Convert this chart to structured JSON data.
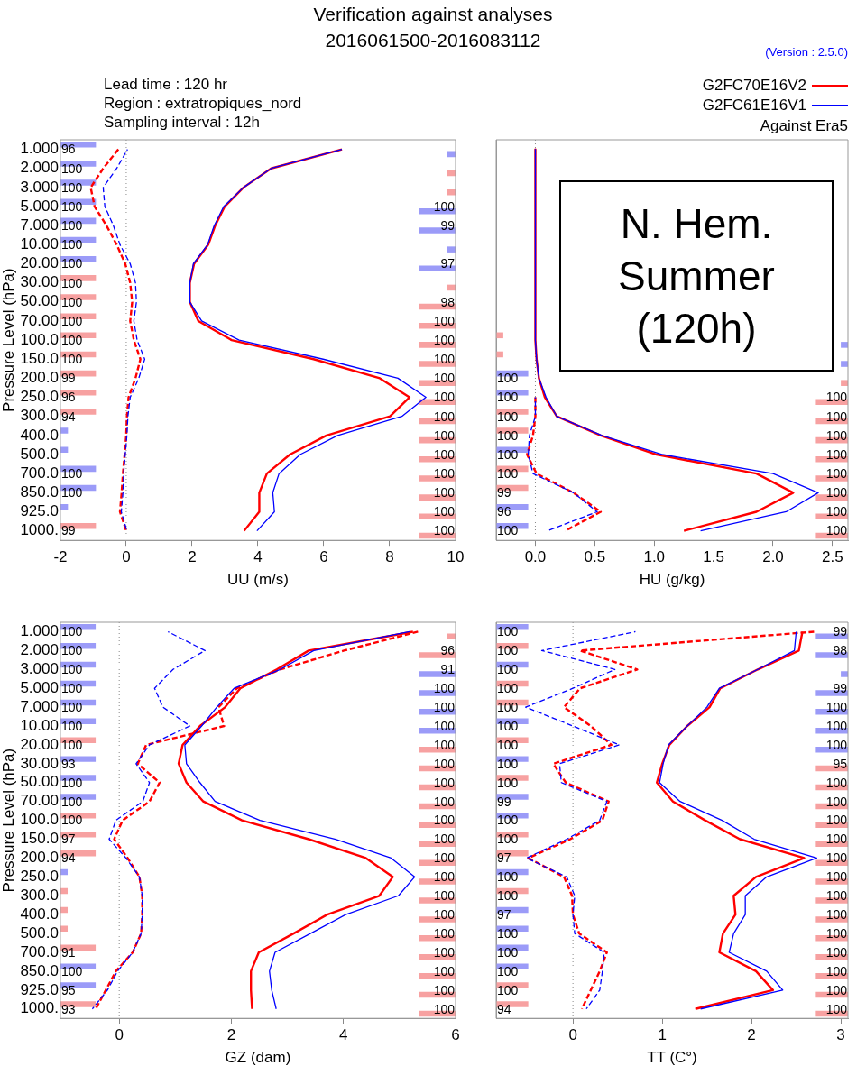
{
  "chart_data": [
    {
      "type": "line",
      "orientation": "horizontal",
      "title": "Verification against analyses",
      "subtitle": "2016061500-2016083112",
      "xlabel": "UU (m/s)",
      "ylabel": "Pressure Level (hPa)",
      "xlim": [
        -2,
        10
      ],
      "xticks": [
        -2,
        0,
        2,
        4,
        6,
        8,
        10
      ],
      "categories": [
        "1.000",
        "2.000",
        "3.000",
        "5.000",
        "7.000",
        "10.00",
        "20.00",
        "30.00",
        "50.00",
        "70.00",
        "100.0",
        "150.0",
        "200.0",
        "250.0",
        "300.0",
        "400.0",
        "500.0",
        "700.0",
        "850.0",
        "925.0",
        "1000."
      ],
      "ref_lines": [
        {
          "axis": "x",
          "value": 0,
          "color": "#888888",
          "line_style": "dotted"
        }
      ],
      "annotations": [
        "Lead time : 120 hr",
        "Region : extratropiques_nord",
        "Sampling interval : 12h",
        {
          "text": "96",
          "x": -2,
          "y": "1.000"
        },
        {
          "text": "100",
          "x": -2,
          "y": "2.000"
        },
        {
          "text": "100",
          "x": -2,
          "y": "3.000"
        },
        {
          "text": "100",
          "x": -2,
          "y": "5.000"
        },
        {
          "text": "100",
          "x": -2,
          "y": "7.000"
        },
        {
          "text": "100",
          "x": -2,
          "y": "10.00"
        },
        {
          "text": "100",
          "x": -2,
          "y": "20.00"
        },
        {
          "text": "100",
          "x": -2,
          "y": "30.00"
        },
        {
          "text": "100",
          "x": -2,
          "y": "50.00"
        },
        {
          "text": "100",
          "x": -2,
          "y": "70.00"
        },
        {
          "text": "100",
          "x": -2,
          "y": "100.0"
        },
        {
          "text": "100",
          "x": -2,
          "y": "150.0"
        },
        {
          "text": "99",
          "x": -2,
          "y": "200.0"
        },
        {
          "text": "96",
          "x": -2,
          "y": "250.0"
        },
        {
          "text": "94",
          "x": -2,
          "y": "300.0"
        },
        {
          "text": "100",
          "x": -2,
          "y": "700.0"
        },
        {
          "text": "100",
          "x": -2,
          "y": "850.0"
        },
        {
          "text": "99",
          "x": -2,
          "y": "1000."
        },
        {
          "text": "100",
          "x": 10,
          "y": "5.000"
        },
        {
          "text": "99",
          "x": 10,
          "y": "7.000"
        },
        {
          "text": "97",
          "x": 10,
          "y": "20.00"
        },
        {
          "text": "98",
          "x": 10,
          "y": "50.00"
        },
        {
          "text": "100",
          "x": 10,
          "y": "70.00"
        },
        {
          "text": "100",
          "x": 10,
          "y": "100.0"
        },
        {
          "text": "100",
          "x": 10,
          "y": "150.0"
        },
        {
          "text": "100",
          "x": 10,
          "y": "200.0"
        },
        {
          "text": "100",
          "x": 10,
          "y": "250.0"
        },
        {
          "text": "100",
          "x": 10,
          "y": "300.0"
        },
        {
          "text": "100",
          "x": 10,
          "y": "400.0"
        },
        {
          "text": "100",
          "x": 10,
          "y": "500.0"
        },
        {
          "text": "100",
          "x": 10,
          "y": "700.0"
        },
        {
          "text": "100",
          "x": 10,
          "y": "850.0"
        },
        {
          "text": "100",
          "x": 10,
          "y": "925.0"
        },
        {
          "text": "100",
          "x": 10,
          "y": "1000."
        }
      ],
      "series": [
        {
          "type": "bar",
          "values": [
            1.08,
            1.08,
            1.08,
            1.08,
            1.08,
            1.08,
            1.08,
            1.08,
            1.08,
            1.08,
            1.08,
            1.08,
            1.08,
            1.08,
            1.08,
            0.23,
            0.23,
            1.08,
            1.08,
            0.23,
            1.08
          ],
          "base": [
            -2,
            -2,
            -2,
            -2,
            -2,
            -2,
            -2,
            -2,
            -2,
            -2,
            -2,
            -2,
            -2,
            -2,
            -2,
            -2,
            -2,
            -2,
            -2,
            -2,
            -2
          ],
          "colors": [
            "#9b9bf8",
            "#9b9bf8",
            "#9b9bf8",
            "#9b9bf8",
            "#9b9bf8",
            "#9b9bf8",
            "#9b9bf8",
            "#f7a1a1",
            "#f7a1a1",
            "#f7a1a1",
            "#f7a1a1",
            "#f7a1a1",
            "#f7a1a1",
            "#f7a1a1",
            "#f7a1a1",
            "#9b9bf8",
            "#9b9bf8",
            "#9b9bf8",
            "#9b9bf8",
            "#9b9bf8",
            "#f7a1a1"
          ]
        },
        {
          "type": "bar",
          "values": [
            0.26,
            0.26,
            0.26,
            1.1,
            1.1,
            0.26,
            1.1,
            0.26,
            1.1,
            1.1,
            1.1,
            1.1,
            1.1,
            1.1,
            1.1,
            1.1,
            1.1,
            1.1,
            1.1,
            1.1,
            1.1
          ],
          "base": [
            9.74,
            9.74,
            9.74,
            8.9,
            8.9,
            9.74,
            8.9,
            9.74,
            8.9,
            8.9,
            8.9,
            8.9,
            8.9,
            8.9,
            8.9,
            8.9,
            8.9,
            8.9,
            8.9,
            8.9,
            8.9
          ],
          "colors": [
            "#9b9bf8",
            "#f7a1a1",
            "#f7a1a1",
            "#9b9bf8",
            "#9b9bf8",
            "#9b9bf8",
            "#9b9bf8",
            "#f7a1a1",
            "#f7a1a1",
            "#f7a1a1",
            "#f7a1a1",
            "#f7a1a1",
            "#f7a1a1",
            "#f7a1a1",
            "#f7a1a1",
            "#f7a1a1",
            "#f7a1a1",
            "#f7a1a1",
            "#f7a1a1",
            "#f7a1a1",
            "#f7a1a1"
          ]
        },
        {
          "line_style": "dashed",
          "color": "#ff0000",
          "values": [
            -0.24,
            -0.7,
            -1.08,
            -0.96,
            -0.6,
            -0.29,
            -0.03,
            0.12,
            0.18,
            0.12,
            0.23,
            0.43,
            0.28,
            0.07,
            0.02,
            0,
            -0.05,
            -0.1,
            -0.14,
            -0.19,
            0
          ]
        },
        {
          "line_style": "dashed",
          "color": "#0000ff",
          "values": [
            0.04,
            -0.29,
            -0.7,
            -0.65,
            -0.39,
            -0.19,
            0.12,
            0.28,
            0.31,
            0.23,
            0.33,
            0.56,
            0.38,
            0.12,
            0.05,
            0.02,
            -0.03,
            -0.08,
            -0.1,
            -0.15,
            0.02
          ]
        },
        {
          "line_style": "solid",
          "color": "#ff0000",
          "values": [
            6.55,
            4.4,
            3.56,
            2.99,
            2.7,
            2.49,
            2.06,
            1.93,
            1.93,
            2.19,
            3.2,
            5.69,
            7.7,
            8.6,
            8.01,
            6.08,
            4.97,
            4.27,
            4.04,
            4.04,
            3.58
          ]
        },
        {
          "line_style": "solid",
          "color": "#0000ff",
          "values": [
            6.55,
            4.4,
            3.56,
            2.96,
            2.67,
            2.47,
            2.04,
            1.93,
            1.93,
            2.29,
            3.43,
            5.98,
            8.25,
            9.1,
            8.37,
            6.42,
            5.28,
            4.64,
            4.45,
            4.5,
            3.97
          ]
        }
      ]
    },
    {
      "type": "line",
      "orientation": "horizontal",
      "legend": "top right",
      "tick_labels": "x",
      "xlabel": "HU (g/kg)",
      "xlim": [
        -0.33,
        2.63
      ],
      "xticks": [
        {
          "value": 0,
          "label": "0.0"
        },
        {
          "value": 0.5,
          "label": "0.5"
        },
        {
          "value": 1,
          "label": "1.0"
        },
        {
          "value": 1.5,
          "label": "1.5"
        },
        {
          "value": 2,
          "label": "2.0"
        },
        {
          "value": 2.5,
          "label": "2.5"
        }
      ],
      "categories": [
        "1.000",
        "2.000",
        "3.000",
        "5.000",
        "7.000",
        "10.00",
        "20.00",
        "30.00",
        "50.00",
        "70.00",
        "100.0",
        "150.0",
        "200.0",
        "250.0",
        "300.0",
        "400.0",
        "500.0",
        "700.0",
        "850.0",
        "925.0",
        "1000."
      ],
      "ref_lines": [
        {
          "axis": "x",
          "value": 0,
          "color": "#888888",
          "line_style": "dotted"
        }
      ],
      "annotations": [
        "(Version : 2.5.0)",
        "Against Era5",
        "N. Hem. Summer (120h)",
        {
          "text": "100",
          "x": -0.33,
          "y": "200.0"
        },
        {
          "text": "100",
          "x": -0.33,
          "y": "250.0"
        },
        {
          "text": "100",
          "x": -0.33,
          "y": "300.0"
        },
        {
          "text": "100",
          "x": -0.33,
          "y": "400.0"
        },
        {
          "text": "100",
          "x": -0.33,
          "y": "500.0"
        },
        {
          "text": "100",
          "x": -0.33,
          "y": "700.0"
        },
        {
          "text": "99",
          "x": -0.33,
          "y": "850.0"
        },
        {
          "text": "96",
          "x": -0.33,
          "y": "925.0"
        },
        {
          "text": "100",
          "x": -0.33,
          "y": "1000."
        },
        {
          "text": "100",
          "x": 2.63,
          "y": "250.0"
        },
        {
          "text": "100",
          "x": 2.63,
          "y": "300.0"
        },
        {
          "text": "100",
          "x": 2.63,
          "y": "400.0"
        },
        {
          "text": "100",
          "x": 2.63,
          "y": "500.0"
        },
        {
          "text": "100",
          "x": 2.63,
          "y": "700.0"
        },
        {
          "text": "100",
          "x": 2.63,
          "y": "850.0"
        },
        {
          "text": "100",
          "x": 2.63,
          "y": "925.0"
        },
        {
          "text": "100",
          "x": 2.63,
          "y": "1000."
        }
      ],
      "series": [
        {
          "type": "bar",
          "values": [
            null,
            null,
            null,
            null,
            null,
            null,
            null,
            null,
            null,
            null,
            0.06,
            0.06,
            0.27,
            0.27,
            0.27,
            0.27,
            0.27,
            0.27,
            0.27,
            0.27,
            0.27
          ],
          "base": [
            null,
            null,
            null,
            null,
            null,
            null,
            null,
            null,
            null,
            null,
            -0.33,
            -0.33,
            -0.33,
            -0.33,
            -0.33,
            -0.33,
            -0.33,
            -0.33,
            -0.33,
            -0.33,
            -0.33
          ],
          "colors": [
            null,
            null,
            null,
            null,
            null,
            null,
            null,
            null,
            null,
            null,
            "#f7a1a1",
            "#f7a1a1",
            "#9b9bf8",
            "#9b9bf8",
            "#f7a1a1",
            "#f7a1a1",
            "#9b9bf8",
            "#f7a1a1",
            "#f7a1a1",
            "#9b9bf8",
            "#9b9bf8"
          ]
        },
        {
          "type": "bar",
          "values": [
            null,
            null,
            null,
            null,
            null,
            null,
            null,
            null,
            null,
            null,
            0.06,
            0.06,
            0.06,
            0.27,
            0.27,
            0.27,
            0.27,
            0.27,
            0.27,
            0.27,
            0.27
          ],
          "base": [
            null,
            null,
            null,
            null,
            null,
            null,
            null,
            null,
            null,
            null,
            2.57,
            2.57,
            2.57,
            2.36,
            2.36,
            2.36,
            2.36,
            2.36,
            2.36,
            2.36,
            2.36
          ],
          "colors": [
            null,
            null,
            null,
            null,
            null,
            null,
            null,
            null,
            null,
            null,
            "#9b9bf8",
            "#9b9bf8",
            "#f7a1a1",
            "#f7a1a1",
            "#f7a1a1",
            "#f7a1a1",
            "#f7a1a1",
            "#f7a1a1",
            "#f7a1a1",
            "#f7a1a1",
            "#f7a1a1"
          ]
        },
        {
          "line_style": "dashed",
          "color": "#ff0000",
          "values": [
            null,
            null,
            null,
            null,
            null,
            null,
            null,
            null,
            null,
            null,
            null,
            null,
            null,
            0,
            0,
            -0.02,
            -0.07,
            0.01,
            0.32,
            0.55,
            0.25
          ]
        },
        {
          "line_style": "dashed",
          "color": "#0000ff",
          "values": [
            null,
            null,
            null,
            null,
            null,
            null,
            null,
            null,
            null,
            null,
            null,
            null,
            null,
            0,
            0,
            -0.05,
            -0.06,
            -0.02,
            0.32,
            0.52,
            0.1
          ]
        },
        {
          "line_style": "solid",
          "name": "G2FC70E16V2",
          "color": "#ff0000",
          "values": [
            0,
            0,
            0,
            0,
            0,
            0,
            0,
            0,
            0,
            0,
            0,
            0.01,
            0.03,
            0.08,
            0.18,
            0.55,
            1.02,
            1.86,
            2.17,
            1.86,
            1.25
          ]
        },
        {
          "line_style": "solid",
          "name": "G2FC61E16V1",
          "color": "#0000ff",
          "values": [
            0,
            0,
            0,
            0,
            0,
            0,
            0,
            0,
            0,
            0,
            0,
            0.01,
            0.03,
            0.09,
            0.18,
            0.56,
            1.07,
            2.0,
            2.38,
            2.11,
            1.39
          ]
        }
      ]
    },
    {
      "type": "line",
      "orientation": "horizontal",
      "xlabel": "GZ (dam)",
      "ylabel": "Pressure Level (hPa)",
      "xlim": [
        -1.05,
        6
      ],
      "xticks": [
        0,
        2,
        4,
        6
      ],
      "categories": [
        "1.000",
        "2.000",
        "3.000",
        "5.000",
        "7.000",
        "10.00",
        "20.00",
        "30.00",
        "50.00",
        "70.00",
        "100.0",
        "150.0",
        "200.0",
        "250.0",
        "300.0",
        "400.0",
        "500.0",
        "700.0",
        "850.0",
        "925.0",
        "1000."
      ],
      "ref_lines": [
        {
          "axis": "x",
          "value": 0,
          "color": "#888888",
          "line_style": "dotted"
        }
      ],
      "annotations": [
        {
          "text": "100",
          "x": -1.05,
          "y": "1.000"
        },
        {
          "text": "100",
          "x": -1.05,
          "y": "2.000"
        },
        {
          "text": "100",
          "x": -1.05,
          "y": "3.000"
        },
        {
          "text": "100",
          "x": -1.05,
          "y": "5.000"
        },
        {
          "text": "100",
          "x": -1.05,
          "y": "7.000"
        },
        {
          "text": "100",
          "x": -1.05,
          "y": "10.00"
        },
        {
          "text": "100",
          "x": -1.05,
          "y": "20.00"
        },
        {
          "text": "93",
          "x": -1.05,
          "y": "30.00"
        },
        {
          "text": "100",
          "x": -1.05,
          "y": "50.00"
        },
        {
          "text": "100",
          "x": -1.05,
          "y": "70.00"
        },
        {
          "text": "100",
          "x": -1.05,
          "y": "100.0"
        },
        {
          "text": "97",
          "x": -1.05,
          "y": "150.0"
        },
        {
          "text": "94",
          "x": -1.05,
          "y": "200.0"
        },
        {
          "text": "91",
          "x": -1.05,
          "y": "700.0"
        },
        {
          "text": "100",
          "x": -1.05,
          "y": "850.0"
        },
        {
          "text": "95",
          "x": -1.05,
          "y": "925.0"
        },
        {
          "text": "93",
          "x": -1.05,
          "y": "1000."
        },
        {
          "text": "96",
          "x": 6,
          "y": "2.000"
        },
        {
          "text": "91",
          "x": 6,
          "y": "3.000"
        },
        {
          "text": "100",
          "x": 6,
          "y": "5.000"
        },
        {
          "text": "100",
          "x": 6,
          "y": "7.000"
        },
        {
          "text": "100",
          "x": 6,
          "y": "10.00"
        },
        {
          "text": "100",
          "x": 6,
          "y": "20.00"
        },
        {
          "text": "100",
          "x": 6,
          "y": "30.00"
        },
        {
          "text": "100",
          "x": 6,
          "y": "50.00"
        },
        {
          "text": "100",
          "x": 6,
          "y": "70.00"
        },
        {
          "text": "100",
          "x": 6,
          "y": "100.0"
        },
        {
          "text": "100",
          "x": 6,
          "y": "150.0"
        },
        {
          "text": "100",
          "x": 6,
          "y": "200.0"
        },
        {
          "text": "100",
          "x": 6,
          "y": "250.0"
        },
        {
          "text": "100",
          "x": 6,
          "y": "300.0"
        },
        {
          "text": "100",
          "x": 6,
          "y": "400.0"
        },
        {
          "text": "100",
          "x": 6,
          "y": "500.0"
        },
        {
          "text": "100",
          "x": 6,
          "y": "700.0"
        },
        {
          "text": "100",
          "x": 6,
          "y": "850.0"
        },
        {
          "text": "100",
          "x": 6,
          "y": "925.0"
        },
        {
          "text": "100",
          "x": 6,
          "y": "1000."
        }
      ],
      "series": [
        {
          "type": "bar",
          "values": [
            0.63,
            0.63,
            0.63,
            0.63,
            0.63,
            0.63,
            0.63,
            0.63,
            0.63,
            0.63,
            0.63,
            0.63,
            0.63,
            0.13,
            0.13,
            0.13,
            0.13,
            0.63,
            0.63,
            0.63,
            0.63
          ],
          "base": [
            -1.05,
            -1.05,
            -1.05,
            -1.05,
            -1.05,
            -1.05,
            -1.05,
            -1.05,
            -1.05,
            -1.05,
            -1.05,
            -1.05,
            -1.05,
            -1.05,
            -1.05,
            -1.05,
            -1.05,
            -1.05,
            -1.05,
            -1.05,
            -1.05
          ],
          "colors": [
            "#9b9bf8",
            "#9b9bf8",
            "#9b9bf8",
            "#9b9bf8",
            "#9b9bf8",
            "#9b9bf8",
            "#f7a1a1",
            "#9b9bf8",
            "#9b9bf8",
            "#9b9bf8",
            "#f7a1a1",
            "#f7a1a1",
            "#f7a1a1",
            "#9b9bf8",
            "#f7a1a1",
            "#f7a1a1",
            "#f7a1a1",
            "#f7a1a1",
            "#9b9bf8",
            "#9b9bf8",
            "#f7a1a1"
          ]
        },
        {
          "type": "bar",
          "values": [
            0.15,
            0.65,
            0.65,
            0.65,
            0.65,
            0.65,
            0.65,
            0.65,
            0.65,
            0.65,
            0.65,
            0.65,
            0.65,
            0.65,
            0.65,
            0.65,
            0.65,
            0.65,
            0.65,
            0.65,
            0.65
          ],
          "base": [
            5.85,
            5.35,
            5.35,
            5.35,
            5.35,
            5.35,
            5.35,
            5.35,
            5.35,
            5.35,
            5.35,
            5.35,
            5.35,
            5.35,
            5.35,
            5.35,
            5.35,
            5.35,
            5.35,
            5.35,
            5.35
          ],
          "colors": [
            "#f7a1a1",
            "#f7a1a1",
            "#9b9bf8",
            "#9b9bf8",
            "#9b9bf8",
            "#9b9bf8",
            "#f7a1a1",
            "#f7a1a1",
            "#f7a1a1",
            "#f7a1a1",
            "#f7a1a1",
            "#f7a1a1",
            "#f7a1a1",
            "#f7a1a1",
            "#f7a1a1",
            "#f7a1a1",
            "#f7a1a1",
            "#f7a1a1",
            "#f7a1a1",
            "#f7a1a1",
            "#f7a1a1"
          ]
        },
        {
          "line_style": "dashed",
          "color": "#ff0000",
          "values": [
            5.33,
            4.01,
            2.87,
            2.1,
            1.77,
            1.87,
            0.48,
            0.33,
            0.72,
            0.54,
            0.06,
            -0.09,
            0.15,
            0.36,
            0.41,
            0.41,
            0.39,
            0.24,
            -0.06,
            -0.24,
            -0.42
          ]
        },
        {
          "line_style": "dashed",
          "color": "#0000ff",
          "values": [
            0.87,
            1.53,
            0.96,
            0.63,
            0.78,
            1.26,
            0.54,
            0.3,
            0.54,
            0.42,
            -0.06,
            -0.18,
            0.12,
            0.36,
            0.41,
            0.41,
            0.39,
            0.24,
            -0.03,
            -0.21,
            -0.48
          ]
        },
        {
          "line_style": "solid",
          "color": "#ff0000",
          "values": [
            5.24,
            3.38,
            2.81,
            2.16,
            1.89,
            1.44,
            1.13,
            1.06,
            1.2,
            1.5,
            2.19,
            3.38,
            4.4,
            4.88,
            4.64,
            3.71,
            3.11,
            2.49,
            2.35,
            2.35,
            2.37
          ]
        },
        {
          "line_style": "solid",
          "color": "#0000ff",
          "values": [
            5.18,
            3.47,
            2.87,
            2.05,
            1.74,
            1.47,
            1.17,
            1.2,
            1.44,
            1.71,
            2.51,
            3.86,
            4.85,
            5.27,
            4.98,
            4.04,
            3.41,
            2.78,
            2.68,
            2.72,
            2.8
          ]
        }
      ]
    },
    {
      "type": "line",
      "orientation": "horizontal",
      "tick_labels": "x",
      "xlabel": "TT (C°)",
      "xlim": [
        -0.86,
        3.08
      ],
      "xticks": [
        0,
        1,
        2,
        3
      ],
      "categories": [
        "1.000",
        "2.000",
        "3.000",
        "5.000",
        "7.000",
        "10.00",
        "20.00",
        "30.00",
        "50.00",
        "70.00",
        "100.0",
        "150.0",
        "200.0",
        "250.0",
        "300.0",
        "400.0",
        "500.0",
        "700.0",
        "850.0",
        "925.0",
        "1000."
      ],
      "ref_lines": [
        {
          "axis": "x",
          "value": 0,
          "color": "#888888",
          "line_style": "dotted"
        }
      ],
      "annotations": [
        {
          "text": "100",
          "x": -0.86,
          "y": "1.000"
        },
        {
          "text": "100",
          "x": -0.86,
          "y": "2.000"
        },
        {
          "text": "100",
          "x": -0.86,
          "y": "3.000"
        },
        {
          "text": "100",
          "x": -0.86,
          "y": "5.000"
        },
        {
          "text": "100",
          "x": -0.86,
          "y": "7.000"
        },
        {
          "text": "100",
          "x": -0.86,
          "y": "10.00"
        },
        {
          "text": "100",
          "x": -0.86,
          "y": "20.00"
        },
        {
          "text": "100",
          "x": -0.86,
          "y": "30.00"
        },
        {
          "text": "100",
          "x": -0.86,
          "y": "50.00"
        },
        {
          "text": "99",
          "x": -0.86,
          "y": "70.00"
        },
        {
          "text": "100",
          "x": -0.86,
          "y": "100.0"
        },
        {
          "text": "100",
          "x": -0.86,
          "y": "150.0"
        },
        {
          "text": "97",
          "x": -0.86,
          "y": "200.0"
        },
        {
          "text": "100",
          "x": -0.86,
          "y": "250.0"
        },
        {
          "text": "100",
          "x": -0.86,
          "y": "300.0"
        },
        {
          "text": "97",
          "x": -0.86,
          "y": "400.0"
        },
        {
          "text": "100",
          "x": -0.86,
          "y": "500.0"
        },
        {
          "text": "100",
          "x": -0.86,
          "y": "700.0"
        },
        {
          "text": "100",
          "x": -0.86,
          "y": "850.0"
        },
        {
          "text": "100",
          "x": -0.86,
          "y": "925.0"
        },
        {
          "text": "94",
          "x": -0.86,
          "y": "1000."
        },
        {
          "text": "99",
          "x": 3.08,
          "y": "1.000"
        },
        {
          "text": "98",
          "x": 3.08,
          "y": "2.000"
        },
        {
          "text": "99",
          "x": 3.08,
          "y": "5.000"
        },
        {
          "text": "100",
          "x": 3.08,
          "y": "7.000"
        },
        {
          "text": "100",
          "x": 3.08,
          "y": "10.00"
        },
        {
          "text": "100",
          "x": 3.08,
          "y": "20.00"
        },
        {
          "text": "95",
          "x": 3.08,
          "y": "30.00"
        },
        {
          "text": "100",
          "x": 3.08,
          "y": "50.00"
        },
        {
          "text": "100",
          "x": 3.08,
          "y": "70.00"
        },
        {
          "text": "100",
          "x": 3.08,
          "y": "100.0"
        },
        {
          "text": "100",
          "x": 3.08,
          "y": "150.0"
        },
        {
          "text": "100",
          "x": 3.08,
          "y": "200.0"
        },
        {
          "text": "100",
          "x": 3.08,
          "y": "250.0"
        },
        {
          "text": "100",
          "x": 3.08,
          "y": "300.0"
        },
        {
          "text": "100",
          "x": 3.08,
          "y": "400.0"
        },
        {
          "text": "100",
          "x": 3.08,
          "y": "500.0"
        },
        {
          "text": "100",
          "x": 3.08,
          "y": "700.0"
        },
        {
          "text": "100",
          "x": 3.08,
          "y": "850.0"
        },
        {
          "text": "100",
          "x": 3.08,
          "y": "925.0"
        },
        {
          "text": "100",
          "x": 3.08,
          "y": "1000."
        }
      ],
      "series": [
        {
          "type": "bar",
          "values": [
            0.36,
            0.36,
            0.36,
            0.36,
            0.36,
            0.36,
            0.36,
            0.36,
            0.36,
            0.36,
            0.36,
            0.36,
            0.36,
            0.36,
            0.36,
            0.36,
            0.36,
            0.36,
            0.36,
            0.36,
            0.36
          ],
          "base": [
            -0.86,
            -0.86,
            -0.86,
            -0.86,
            -0.86,
            -0.86,
            -0.86,
            -0.86,
            -0.86,
            -0.86,
            -0.86,
            -0.86,
            -0.86,
            -0.86,
            -0.86,
            -0.86,
            -0.86,
            -0.86,
            -0.86,
            -0.86,
            -0.86
          ],
          "colors": [
            "#9b9bf8",
            "#f7a1a1",
            "#9b9bf8",
            "#f7a1a1",
            "#f7a1a1",
            "#9b9bf8",
            "#f7a1a1",
            "#9b9bf8",
            "#f7a1a1",
            "#9b9bf8",
            "#9b9bf8",
            "#f7a1a1",
            "#f7a1a1",
            "#9b9bf8",
            "#f7a1a1",
            "#9b9bf8",
            "#9b9bf8",
            "#9b9bf8",
            "#9b9bf8",
            "#f7a1a1",
            "#f7a1a1"
          ]
        },
        {
          "type": "bar",
          "values": [
            0.36,
            0.36,
            0.08,
            0.36,
            0.36,
            0.36,
            0.36,
            0.36,
            0.36,
            0.36,
            0.36,
            0.36,
            0.36,
            0.36,
            0.36,
            0.36,
            0.36,
            0.36,
            0.36,
            0.36,
            0.36
          ],
          "base": [
            2.72,
            2.72,
            3.0,
            2.72,
            2.72,
            2.72,
            2.72,
            2.72,
            2.72,
            2.72,
            2.72,
            2.72,
            2.72,
            2.72,
            2.72,
            2.72,
            2.72,
            2.72,
            2.72,
            2.72,
            2.72
          ],
          "colors": [
            "#9b9bf8",
            "#9b9bf8",
            "#9b9bf8",
            "#9b9bf8",
            "#9b9bf8",
            "#9b9bf8",
            "#9b9bf8",
            "#f7a1a1",
            "#f7a1a1",
            "#f7a1a1",
            "#f7a1a1",
            "#f7a1a1",
            "#f7a1a1",
            "#f7a1a1",
            "#f7a1a1",
            "#f7a1a1",
            "#f7a1a1",
            "#f7a1a1",
            "#f7a1a1",
            "#f7a1a1",
            "#f7a1a1"
          ]
        },
        {
          "line_style": "dashed",
          "color": "#ff0000",
          "values": [
            2.7,
            0.08,
            0.72,
            0.08,
            -0.1,
            0.2,
            0.43,
            -0.22,
            -0.08,
            0.4,
            0.33,
            -0.03,
            -0.5,
            -0.1,
            -0.01,
            0,
            0.07,
            0.38,
            0.3,
            0.2,
            0.1
          ]
        },
        {
          "line_style": "dashed",
          "color": "#0000ff",
          "values": [
            0.7,
            -0.35,
            0.47,
            0,
            -0.53,
            0,
            0.52,
            -0.15,
            -0.13,
            0.38,
            0.3,
            -0.07,
            -0.52,
            -0.07,
            0.02,
            0,
            0.02,
            0.35,
            0.33,
            0.3,
            0.15
          ]
        },
        {
          "line_style": "solid",
          "color": "#ff0000",
          "values": [
            2.57,
            2.53,
            2.07,
            1.65,
            1.53,
            1.28,
            1.08,
            1.0,
            0.94,
            1.12,
            1.48,
            1.87,
            2.59,
            2.05,
            1.8,
            1.82,
            1.68,
            1.64,
            2.05,
            2.24,
            1.37
          ]
        },
        {
          "line_style": "solid",
          "color": "#0000ff",
          "values": [
            2.5,
            2.48,
            2.07,
            1.64,
            1.5,
            1.28,
            1.07,
            1.01,
            0.97,
            1.2,
            1.67,
            2.03,
            2.73,
            2.17,
            1.93,
            1.93,
            1.8,
            1.75,
            2.17,
            2.35,
            1.43
          ]
        }
      ]
    }
  ]
}
